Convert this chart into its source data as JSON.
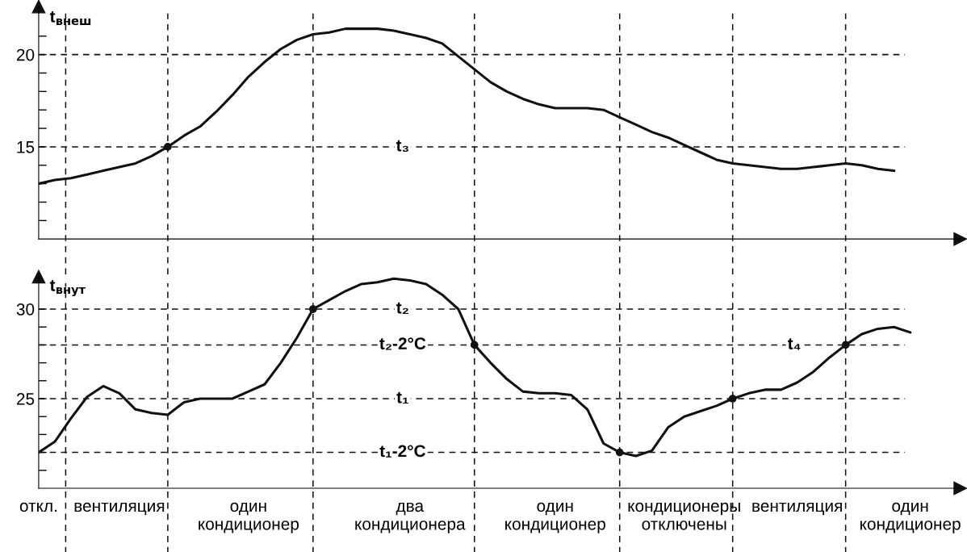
{
  "chart_data": [
    {
      "type": "line",
      "ylabel": "t$_{внеш}$",
      "ylim": [
        10,
        22.6
      ],
      "tick_labels": "y",
      "grid": "x",
      "line_style": "solid",
      "categories": [
        null,
        null,
        null,
        null,
        null,
        null,
        null,
        null,
        null,
        null,
        null,
        null,
        null,
        null,
        null,
        null,
        null,
        null,
        null,
        null,
        null,
        null,
        null,
        null,
        null,
        null,
        null,
        null,
        null,
        null,
        null,
        null,
        null,
        null,
        null,
        null,
        null,
        null,
        null,
        null,
        null,
        null,
        null,
        null,
        null,
        null,
        null,
        null,
        null,
        null,
        null,
        null,
        null,
        null,
        null,
        null,
        null,
        null
      ],
      "yticks": [
        {
          "value": 11,
          "label": null
        },
        {
          "value": 12,
          "label": null
        },
        {
          "value": 13,
          "label": null
        },
        {
          "value": 14,
          "label": null
        },
        15,
        {
          "value": 16,
          "label": null
        },
        {
          "value": 17,
          "label": null
        },
        {
          "value": 18,
          "label": null
        },
        {
          "value": 19,
          "label": null
        },
        20,
        {
          "value": 21,
          "label": null
        }
      ],
      "series": [
        {
          "color": "#111111",
          "values": [
            13.0,
            13.2,
            13.3,
            13.5,
            13.7,
            13.9,
            14.1,
            14.5,
            15.0,
            15.6,
            16.1,
            16.9,
            17.8,
            18.8,
            19.6,
            20.3,
            20.8,
            21.1,
            21.2,
            21.4,
            21.4,
            21.4,
            21.3,
            21.1,
            20.9,
            20.6,
            19.9,
            19.2,
            18.5,
            18.0,
            17.6,
            17.3,
            17.1,
            17.1,
            17.1,
            17.0,
            16.6,
            16.2,
            15.8,
            15.5,
            15.1,
            14.7,
            14.3,
            14.1,
            14.0,
            13.9,
            13.8,
            13.8,
            13.9,
            14.0,
            14.1,
            14.0,
            13.8,
            13.7,
            null,
            null,
            null,
            null
          ]
        },
        {
          "type": "scatter",
          "color": "#111111",
          "values": [
            null,
            null,
            null,
            null,
            null,
            null,
            null,
            null,
            15,
            null,
            null,
            null,
            null,
            null,
            null,
            null,
            null,
            null,
            null,
            null,
            null,
            null,
            null,
            null,
            null,
            null,
            null,
            null,
            null,
            null,
            null,
            null,
            null,
            null,
            null,
            null,
            null,
            null,
            null,
            null,
            null,
            null,
            null,
            null,
            null,
            null,
            null,
            null,
            null,
            null,
            null,
            null,
            null,
            null,
            null,
            null,
            null,
            null
          ]
        }
      ],
      "ref_lines": [
        {
          "axis": "y",
          "value": 20,
          "label": null,
          "color": "#111111",
          "line_style": "dashed"
        },
        {
          "axis": "y",
          "value": 15,
          "label": "t₃",
          "color": "#111111",
          "line_style": "dashed"
        }
      ]
    },
    {
      "type": "line",
      "ylabel": "t$_{внут}$",
      "ylim": [
        20,
        31.8
      ],
      "grid": "x",
      "line_style": "solid",
      "categories": [
        "откл.",
        null,
        null,
        null,
        null,
        "вентиляция",
        null,
        null,
        null,
        null,
        null,
        null,
        null,
        "один\nкондиционер",
        null,
        null,
        null,
        null,
        null,
        null,
        null,
        null,
        null,
        "два\nкондиционера",
        null,
        null,
        null,
        null,
        null,
        null,
        null,
        null,
        "один\nкондиционер",
        null,
        null,
        null,
        null,
        null,
        null,
        null,
        "кондиционеры\nотключены",
        null,
        null,
        null,
        null,
        null,
        null,
        "вентиляция",
        null,
        null,
        null,
        null,
        null,
        null,
        "один\nкондиционер",
        null,
        null,
        null
      ],
      "yticks": [
        {
          "value": 21,
          "label": null
        },
        {
          "value": 22,
          "label": null
        },
        {
          "value": 23,
          "label": null
        },
        {
          "value": 24,
          "label": null
        },
        25,
        {
          "value": 26,
          "label": null
        },
        {
          "value": 27,
          "label": null
        },
        {
          "value": 28,
          "label": null
        },
        {
          "value": 29,
          "label": null
        },
        30
      ],
      "series": [
        {
          "color": "#111111",
          "values": [
            22.0,
            22.6,
            23.9,
            25.1,
            25.7,
            25.3,
            24.4,
            24.2,
            24.1,
            24.8,
            25.0,
            25.0,
            25.0,
            25.4,
            25.8,
            27.0,
            28.4,
            30.0,
            30.5,
            31.0,
            31.4,
            31.5,
            31.7,
            31.6,
            31.4,
            30.8,
            30.0,
            28.0,
            27.0,
            26.1,
            25.4,
            25.3,
            25.3,
            25.2,
            24.4,
            22.5,
            22.0,
            21.8,
            22.1,
            23.4,
            24.0,
            24.3,
            24.6,
            25.0,
            25.3,
            25.5,
            25.5,
            25.9,
            26.5,
            27.3,
            28.0,
            28.6,
            28.9,
            29.0,
            28.7,
            null,
            null,
            null
          ]
        },
        {
          "type": "scatter",
          "color": "#111111",
          "values": [
            null,
            null,
            null,
            null,
            null,
            null,
            null,
            null,
            null,
            null,
            null,
            null,
            null,
            null,
            null,
            null,
            null,
            30,
            null,
            null,
            null,
            null,
            null,
            null,
            null,
            null,
            null,
            28,
            null,
            null,
            null,
            null,
            null,
            null,
            null,
            null,
            22,
            null,
            null,
            null,
            null,
            null,
            null,
            25,
            null,
            null,
            null,
            null,
            null,
            null,
            28,
            null,
            null,
            null,
            null,
            null,
            null,
            null
          ]
        }
      ],
      "ref_lines": [
        {
          "axis": "y",
          "value": 30,
          "label": "t₂",
          "color": "#111111",
          "line_style": "dashed"
        },
        {
          "axis": "y",
          "value": 28,
          "label": "t₂-2°C",
          "color": "#111111",
          "line_style": "dashed"
        },
        {
          "axis": "y",
          "value": 25,
          "label": "t₁",
          "color": "#111111",
          "line_style": "dashed"
        },
        {
          "axis": "y",
          "value": 22,
          "label": "t₁-2°C",
          "color": "#111111",
          "line_style": "dashed"
        }
      ],
      "annotations": [
        {
          "text": "t₄",
          "y": 28
        }
      ]
    }
  ]
}
